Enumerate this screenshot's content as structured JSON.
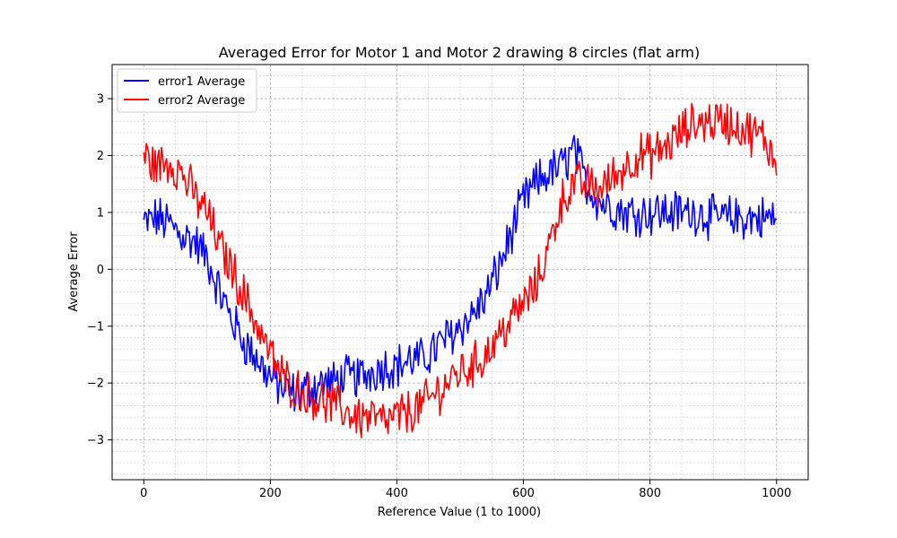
{
  "chart_data": {
    "type": "line",
    "title": "Averaged Error for Motor 1 and Motor 2 drawing 8 circles (flat arm)",
    "xlabel": "Reference Value (1 to 1000)",
    "ylabel": "Average Error",
    "xlim": [
      -50,
      1050
    ],
    "ylim": [
      -3.7,
      3.6
    ],
    "xticks": [
      0,
      200,
      400,
      600,
      800,
      1000
    ],
    "yticks": [
      -3,
      -2,
      -1,
      0,
      1,
      2,
      3
    ],
    "grid": true,
    "minor_grid": true,
    "legend_position": "top-left",
    "colors": {
      "error1": "#0000ff",
      "error2": "#ff0000"
    },
    "series": [
      {
        "name": "error1 Average",
        "color": "#0000ff",
        "noise": 0.35,
        "x": [
          0,
          20,
          40,
          60,
          80,
          100,
          120,
          140,
          160,
          180,
          200,
          220,
          240,
          260,
          280,
          300,
          320,
          340,
          360,
          380,
          400,
          420,
          440,
          460,
          480,
          500,
          520,
          540,
          560,
          580,
          600,
          620,
          640,
          660,
          680,
          700,
          720,
          740,
          760,
          780,
          800,
          820,
          840,
          860,
          880,
          900,
          920,
          940,
          960,
          980,
          1000
        ],
        "y": [
          0.8,
          0.9,
          0.8,
          0.6,
          0.5,
          0.2,
          -0.4,
          -0.9,
          -1.3,
          -1.6,
          -1.9,
          -2.1,
          -2.2,
          -2.1,
          -2.0,
          -2.0,
          -1.9,
          -1.9,
          -1.8,
          -1.7,
          -1.7,
          -1.6,
          -1.6,
          -1.4,
          -1.2,
          -1.0,
          -0.8,
          -0.5,
          0.0,
          0.6,
          1.2,
          1.5,
          1.7,
          1.8,
          2.1,
          1.5,
          1.2,
          1.1,
          1.0,
          1.0,
          1.0,
          1.0,
          1.0,
          1.0,
          1.0,
          0.9,
          0.9,
          0.9,
          0.9,
          0.9,
          0.9
        ]
      },
      {
        "name": "error2 Average",
        "color": "#ff0000",
        "noise": 0.35,
        "x": [
          0,
          20,
          40,
          60,
          80,
          100,
          120,
          140,
          160,
          180,
          200,
          220,
          240,
          260,
          280,
          300,
          320,
          340,
          360,
          380,
          400,
          420,
          440,
          460,
          480,
          500,
          520,
          540,
          560,
          580,
          600,
          620,
          640,
          660,
          680,
          700,
          720,
          740,
          760,
          780,
          800,
          820,
          840,
          860,
          880,
          900,
          920,
          940,
          960,
          980,
          1000
        ],
        "y": [
          2.0,
          1.8,
          1.9,
          1.7,
          1.3,
          1.0,
          0.4,
          0.0,
          -0.5,
          -1.0,
          -1.5,
          -1.9,
          -2.1,
          -2.2,
          -2.3,
          -2.4,
          -2.5,
          -2.6,
          -2.6,
          -2.7,
          -2.6,
          -2.5,
          -2.4,
          -2.2,
          -2.0,
          -1.8,
          -1.7,
          -1.5,
          -1.2,
          -0.9,
          -0.6,
          -0.3,
          0.4,
          1.2,
          1.5,
          1.5,
          1.4,
          1.6,
          1.8,
          2.0,
          2.0,
          2.1,
          2.3,
          2.5,
          2.6,
          2.6,
          2.6,
          2.5,
          2.4,
          2.3,
          1.9
        ]
      }
    ]
  }
}
